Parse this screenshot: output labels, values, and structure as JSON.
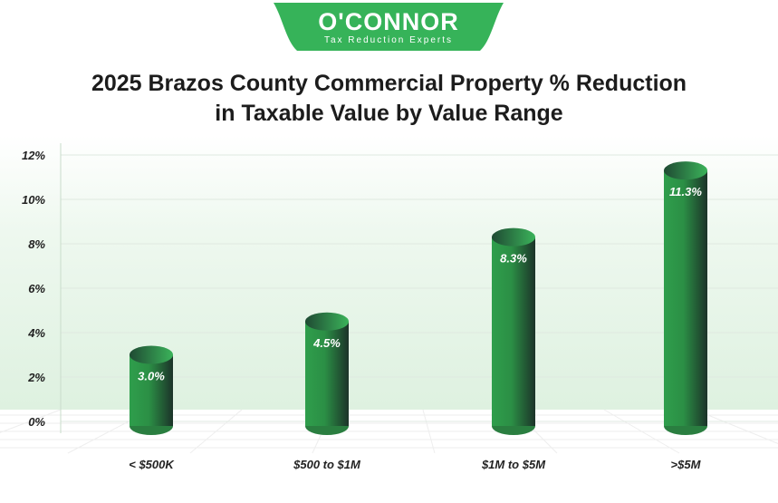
{
  "logo": {
    "name": "O'CONNOR",
    "tagline": "Tax Reduction Experts"
  },
  "chart_data": {
    "type": "bar",
    "title": "2025 Brazos County Commercial Property % Reduction in Taxable Value by Value Range",
    "title_lines": [
      "2025 Brazos County Commercial Property % Reduction",
      "in Taxable Value by Value Range"
    ],
    "categories": [
      "< $500K",
      "$500 to $1M",
      "$1M to $5M",
      ">$5M"
    ],
    "values": [
      3.0,
      4.5,
      8.3,
      11.3
    ],
    "data_labels": [
      "3.0%",
      "4.5%",
      "8.3%",
      "11.3%"
    ],
    "ylim": [
      0,
      12
    ],
    "yticks": [
      0,
      2,
      4,
      6,
      8,
      10,
      12
    ],
    "ytick_labels": [
      "0%",
      "2%",
      "4%",
      "6%",
      "8%",
      "10%",
      "12%"
    ],
    "xlabel": "",
    "ylabel": "",
    "grid": true,
    "colors": {
      "bar_light": "#33a854",
      "bar_dark": "#1d3a2c",
      "logo": "#36b359",
      "band": "#e3f3e4"
    }
  }
}
